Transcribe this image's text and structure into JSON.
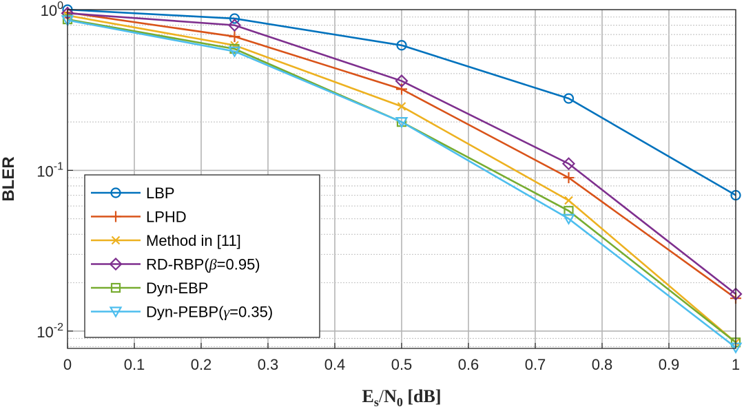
{
  "chart_data": {
    "type": "line",
    "xlabel": "Es/N0 [dB]",
    "xlabel_parts": {
      "e": "E",
      "s": "s",
      "slash": "/",
      "n": "N",
      "zero": "0",
      "unit": " [dB]"
    },
    "ylabel": "BLER",
    "x": [
      0,
      0.25,
      0.5,
      0.75,
      1
    ],
    "xlim": [
      0,
      1
    ],
    "ylim": [
      0.0078,
      1
    ],
    "yscale": "log",
    "grid": true,
    "legend_position": "bottom-left",
    "x_ticks": [
      "0",
      "0.1",
      "0.2",
      "0.3",
      "0.4",
      "0.5",
      "0.6",
      "0.7",
      "0.8",
      "0.9",
      "1"
    ],
    "y_ticks": [
      {
        "value": 0.01,
        "base": "10",
        "exp": "-2"
      },
      {
        "value": 0.1,
        "base": "10",
        "exp": "-1"
      },
      {
        "value": 1,
        "base": "10",
        "exp": "0"
      }
    ],
    "series": [
      {
        "name": "LBP",
        "color": "#0072BD",
        "marker": "circle",
        "values": [
          1.0,
          0.88,
          0.6,
          0.28,
          0.07
        ]
      },
      {
        "name": "LPHD",
        "color": "#D95319",
        "marker": "plus",
        "values": [
          0.96,
          0.68,
          0.32,
          0.09,
          0.016
        ]
      },
      {
        "name": "Method in [11]",
        "color": "#EDB120",
        "marker": "x",
        "values": [
          0.92,
          0.6,
          0.25,
          0.065,
          0.0085
        ]
      },
      {
        "name": "RD-RBP(β=0.95)",
        "name_parts": {
          "pre": "RD-RBP(",
          "sym": "β",
          "post": "=0.95)"
        },
        "color": "#7E2F8E",
        "marker": "diamond",
        "values": [
          0.95,
          0.8,
          0.36,
          0.11,
          0.017
        ]
      },
      {
        "name": "Dyn-EBP",
        "color": "#77AC30",
        "marker": "square",
        "values": [
          0.87,
          0.57,
          0.2,
          0.056,
          0.0085
        ]
      },
      {
        "name": "Dyn-PEBP(γ=0.35)",
        "name_parts": {
          "pre": "Dyn-PEBP(",
          "sym": "γ",
          "post": "=0.35)"
        },
        "color": "#4DBEEE",
        "marker": "triangle-down",
        "values": [
          0.86,
          0.55,
          0.2,
          0.05,
          0.0079
        ]
      }
    ]
  }
}
